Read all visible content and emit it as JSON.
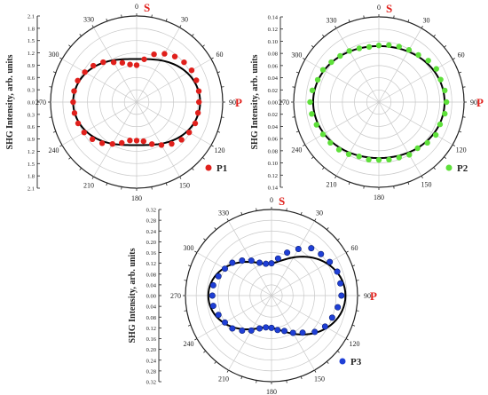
{
  "chart_data": [
    {
      "type": "polar-scatter-line",
      "panel_label": "P1",
      "ylabel": "SHG Intensity, arb. units",
      "r_ticks": [
        "2.1",
        "1.8",
        "1.5",
        "1.2",
        "0.9",
        "0.6",
        "0.3",
        "0.0",
        "0.3",
        "0.6",
        "0.9",
        "1.2",
        "1.5",
        "1.8",
        "2.1"
      ],
      "rmax": 2.1,
      "rings": [
        0.3,
        0.6,
        0.9,
        1.2,
        1.5,
        1.8,
        2.1
      ],
      "angle_labels": [
        "0",
        "30",
        "60",
        "90",
        "120",
        "150",
        "180",
        "210",
        "240",
        "270",
        "300",
        "330"
      ],
      "s_label": "S",
      "p_label": "P",
      "marker_color": "#e0201c",
      "fit_color": "#000000",
      "points": {
        "angles_deg": [
          0,
          10,
          20,
          30,
          40,
          50,
          60,
          70,
          80,
          90,
          100,
          110,
          120,
          130,
          140,
          150,
          160,
          170,
          180,
          190,
          200,
          210,
          220,
          230,
          240,
          250,
          260,
          270,
          280,
          290,
          300,
          310,
          320,
          330,
          340,
          350
        ],
        "r": [
          0.9,
          1.06,
          1.24,
          1.36,
          1.45,
          1.51,
          1.55,
          1.55,
          1.54,
          1.52,
          1.52,
          1.52,
          1.48,
          1.43,
          1.33,
          1.21,
          1.09,
          0.97,
          0.94,
          0.95,
          1.06,
          1.18,
          1.31,
          1.41,
          1.48,
          1.52,
          1.54,
          1.55,
          1.55,
          1.53,
          1.46,
          1.38,
          1.27,
          1.12,
          1.02,
          0.93
        ]
      },
      "fit": {
        "A": 1.05,
        "B": 0.5
      }
    },
    {
      "type": "polar-scatter-line",
      "panel_label": "P2",
      "ylabel": "SHG Intensity, arb. units",
      "r_ticks": [
        "0.14",
        "0.12",
        "0.10",
        "0.08",
        "0.06",
        "0.04",
        "0.02",
        "0.00",
        "0.02",
        "0.04",
        "0.06",
        "0.08",
        "0.10",
        "0.12",
        "0.14"
      ],
      "rmax": 0.14,
      "rings": [
        0.02,
        0.04,
        0.06,
        0.08,
        0.1,
        0.12,
        0.14
      ],
      "angle_labels": [
        "0",
        "30",
        "60",
        "90",
        "120",
        "150",
        "180",
        "210",
        "240",
        "270",
        "300",
        "330"
      ],
      "s_label": "S",
      "p_label": "P",
      "marker_color": "#5ee03a",
      "fit_color": "#000000",
      "points": {
        "angles_deg": [
          0,
          10,
          20,
          30,
          40,
          50,
          60,
          70,
          80,
          90,
          100,
          110,
          120,
          130,
          140,
          150,
          160,
          170,
          180,
          190,
          200,
          210,
          220,
          230,
          240,
          250,
          260,
          270,
          280,
          290,
          300,
          310,
          320,
          330,
          340,
          350
        ],
        "r": [
          0.093,
          0.095,
          0.097,
          0.099,
          0.101,
          0.106,
          0.109,
          0.108,
          0.11,
          0.111,
          0.11,
          0.107,
          0.108,
          0.104,
          0.099,
          0.1,
          0.097,
          0.096,
          0.095,
          0.096,
          0.095,
          0.099,
          0.102,
          0.104,
          0.106,
          0.109,
          0.112,
          0.113,
          0.111,
          0.107,
          0.106,
          0.102,
          0.099,
          0.097,
          0.094,
          0.092
        ]
      },
      "fit": {
        "A": 0.092,
        "B": 0.016
      }
    },
    {
      "type": "polar-scatter-line",
      "panel_label": "P3",
      "ylabel": "SHG Intensity, arb. units",
      "r_ticks": [
        "0.32",
        "0.28",
        "0.24",
        "0.20",
        "0.16",
        "0.12",
        "0.08",
        "0.04",
        "0.00",
        "0.04",
        "0.08",
        "0.12",
        "0.16",
        "0.20",
        "0.24",
        "0.28",
        "0.32"
      ],
      "rmax": 0.32,
      "rings": [
        0.04,
        0.08,
        0.12,
        0.16,
        0.2,
        0.24,
        0.28,
        0.32
      ],
      "angle_labels": [
        "0",
        "30",
        "60",
        "90",
        "120",
        "150",
        "180",
        "210",
        "240",
        "270",
        "300",
        "330"
      ],
      "s_label": "S",
      "p_label": "P",
      "marker_color": "#1f3fd6",
      "fit_color": "#000000",
      "points": {
        "angles_deg": [
          0,
          10,
          20,
          30,
          40,
          50,
          60,
          70,
          80,
          90,
          100,
          110,
          120,
          130,
          140,
          150,
          160,
          170,
          180,
          190,
          200,
          210,
          220,
          230,
          240,
          250,
          260,
          270,
          280,
          290,
          300,
          310,
          320,
          330,
          340,
          350
        ],
        "r": [
          0.12,
          0.14,
          0.17,
          0.2,
          0.23,
          0.24,
          0.25,
          0.26,
          0.26,
          0.26,
          0.25,
          0.24,
          0.23,
          0.21,
          0.18,
          0.16,
          0.14,
          0.13,
          0.12,
          0.12,
          0.13,
          0.15,
          0.17,
          0.19,
          0.2,
          0.21,
          0.22,
          0.22,
          0.22,
          0.21,
          0.2,
          0.19,
          0.17,
          0.15,
          0.13,
          0.12
        ]
      },
      "fit": {
        "A": 0.12,
        "B": 0.135
      }
    }
  ]
}
